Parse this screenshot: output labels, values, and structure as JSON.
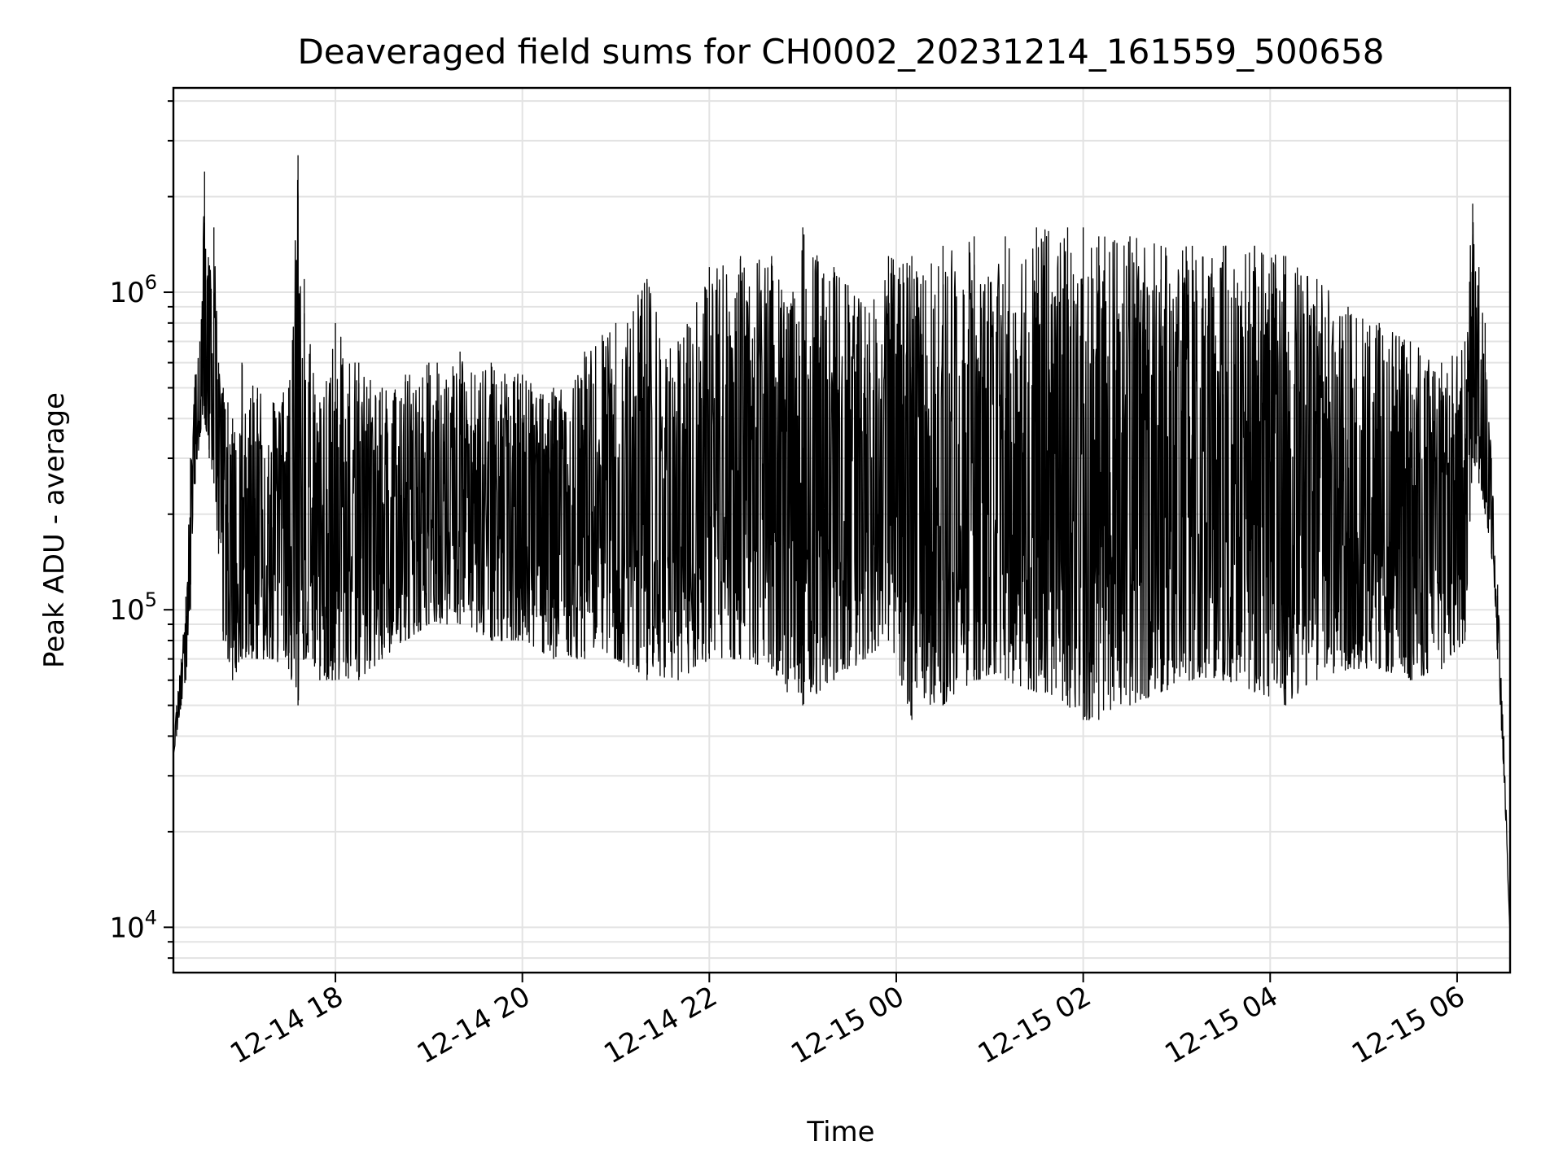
{
  "chart_data": {
    "type": "line",
    "title": "Deaveraged field sums for CH0002_20231214_161559_500658",
    "xlabel": "Time",
    "ylabel": "Peak ADU - average",
    "yscale": "log",
    "ylim": [
      7200,
      4400000
    ],
    "xlim": [
      "2023-12-14 16:16",
      "2023-12-15 06:34"
    ],
    "grid": true,
    "line_color": "#000000",
    "x_ticks": [
      {
        "value": "2023-12-14 18:00",
        "label": "12-14 18"
      },
      {
        "value": "2023-12-14 20:00",
        "label": "12-14 20"
      },
      {
        "value": "2023-12-14 22:00",
        "label": "12-14 22"
      },
      {
        "value": "2023-12-15 00:00",
        "label": "12-15 00"
      },
      {
        "value": "2023-12-15 02:00",
        "label": "12-15 02"
      },
      {
        "value": "2023-12-15 04:00",
        "label": "12-15 04"
      },
      {
        "value": "2023-12-15 06:00",
        "label": "12-15 06"
      }
    ],
    "y_ticks": [
      {
        "value": 10000,
        "base": "10",
        "exp": "4"
      },
      {
        "value": 100000,
        "base": "10",
        "exp": "5"
      },
      {
        "value": 1000000,
        "base": "10",
        "exp": "6"
      }
    ],
    "series": [
      {
        "x": [
          "2023-12-14 16:16",
          "2023-12-14 16:18",
          "2023-12-14 16:21",
          "2023-12-14 16:24",
          "2023-12-14 16:27",
          "2023-12-14 16:30",
          "2023-12-14 16:33",
          "2023-12-14 16:36",
          "2023-12-14 16:39",
          "2023-12-14 16:42",
          "2023-12-14 16:45",
          "2023-12-14 16:48",
          "2023-12-14 16:51",
          "2023-12-14 16:54",
          "2023-12-14 17:00",
          "2023-12-14 17:10",
          "2023-12-14 17:20",
          "2023-12-14 17:30",
          "2023-12-14 17:36",
          "2023-12-14 17:40",
          "2023-12-14 17:50",
          "2023-12-14 18:00",
          "2023-12-14 18:15",
          "2023-12-14 18:30",
          "2023-12-14 18:45",
          "2023-12-14 19:00",
          "2023-12-14 19:20",
          "2023-12-14 19:40",
          "2023-12-14 20:00",
          "2023-12-14 20:20",
          "2023-12-14 20:40",
          "2023-12-14 21:00",
          "2023-12-14 21:20",
          "2023-12-14 21:40",
          "2023-12-14 22:00",
          "2023-12-14 22:20",
          "2023-12-14 22:40",
          "2023-12-14 22:50",
          "2023-12-14 23:00",
          "2023-12-14 23:20",
          "2023-12-14 23:40",
          "2023-12-14 23:55",
          "2023-12-15 00:10",
          "2023-12-15 00:30",
          "2023-12-15 00:50",
          "2023-12-15 01:10",
          "2023-12-15 01:30",
          "2023-12-15 01:50",
          "2023-12-15 02:00",
          "2023-12-15 02:10",
          "2023-12-15 02:30",
          "2023-12-15 02:50",
          "2023-12-15 03:10",
          "2023-12-15 03:30",
          "2023-12-15 03:50",
          "2023-12-15 04:10",
          "2023-12-15 04:30",
          "2023-12-15 04:50",
          "2023-12-15 05:10",
          "2023-12-15 05:30",
          "2023-12-15 05:50",
          "2023-12-15 06:05",
          "2023-12-15 06:10",
          "2023-12-15 06:14",
          "2023-12-15 06:18",
          "2023-12-15 06:22",
          "2023-12-15 06:26",
          "2023-12-15 06:30",
          "2023-12-15 06:34"
        ],
        "upper": [
          35000,
          50000,
          70000,
          110000,
          300000,
          550000,
          700000,
          2400000,
          1200000,
          1600000,
          600000,
          500000,
          450000,
          400000,
          600000,
          500000,
          450000,
          500000,
          2700000,
          1100000,
          450000,
          800000,
          600000,
          500000,
          550000,
          600000,
          650000,
          600000,
          550000,
          500000,
          650000,
          800000,
          1100000,
          700000,
          1200000,
          1300000,
          1300000,
          900000,
          1600000,
          1200000,
          900000,
          1300000,
          1300000,
          1400000,
          1500000,
          1500000,
          1600000,
          1600000,
          1600000,
          1500000,
          1500000,
          1400000,
          1400000,
          1400000,
          1400000,
          1300000,
          1100000,
          900000,
          800000,
          700000,
          600000,
          700000,
          1900000,
          1200000,
          800000,
          300000,
          120000,
          40000,
          9500
        ],
        "lower": [
          35000,
          40000,
          50000,
          60000,
          100000,
          250000,
          350000,
          400000,
          300000,
          250000,
          150000,
          80000,
          70000,
          60000,
          70000,
          70000,
          70000,
          65000,
          50000,
          70000,
          60000,
          60000,
          60000,
          70000,
          80000,
          90000,
          90000,
          80000,
          80000,
          70000,
          70000,
          70000,
          60000,
          60000,
          70000,
          70000,
          65000,
          55000,
          50000,
          60000,
          70000,
          80000,
          45000,
          50000,
          60000,
          60000,
          55000,
          50000,
          45000,
          45000,
          50000,
          55000,
          60000,
          60000,
          55000,
          50000,
          60000,
          65000,
          65000,
          60000,
          65000,
          80000,
          300000,
          250000,
          200000,
          150000,
          70000,
          30000,
          9500
        ]
      }
    ]
  }
}
